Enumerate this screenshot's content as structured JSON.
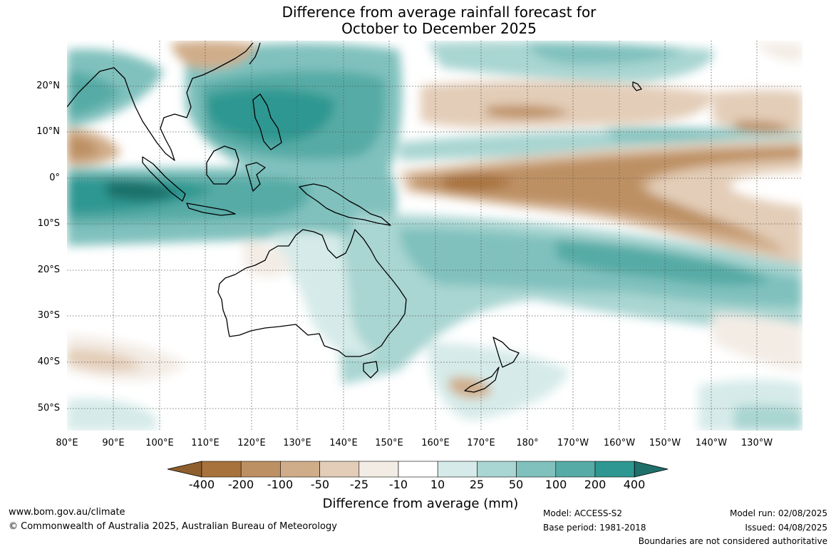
{
  "title": {
    "line1": "Difference from average rainfall forecast for",
    "line2": "October to December 2025"
  },
  "map": {
    "projection": "equirectangular",
    "lat_labels": [
      "20°N",
      "10°N",
      "0°",
      "10°S",
      "20°S",
      "30°S",
      "40°S",
      "50°S"
    ],
    "lon_labels": [
      "80°E",
      "90°E",
      "100°E",
      "110°E",
      "120°E",
      "130°E",
      "140°E",
      "150°E",
      "160°E",
      "170°E",
      "180°",
      "170°W",
      "160°W",
      "150°W",
      "140°W",
      "130°W"
    ],
    "gridlines": "dotted"
  },
  "legend": {
    "title": "Difference from average (mm)",
    "labels": [
      "-400",
      "-200",
      "-100",
      "-50",
      "-25",
      "-10",
      "10",
      "25",
      "50",
      "100",
      "200",
      "400"
    ],
    "colors": [
      "#a8723c",
      "#bd9064",
      "#d0ad8a",
      "#e3cdb8",
      "#f3ece5",
      "#ffffff",
      "#d6ebe9",
      "#a9d5d2",
      "#80c1bd",
      "#56aba6",
      "#2e9791",
      "#1f6f6b"
    ]
  },
  "footer": {
    "website": "www.bom.gov.au/climate",
    "copyright": "© Commonwealth of Australia 2025, Australian Bureau of Meteorology",
    "model": "Model: ACCESS-S2",
    "base_period": "Base period: 1981-2018",
    "model_run": "Model run: 02/08/2025",
    "issued": "Issued: 04/08/2025",
    "disclaimer": "Boundaries are not considered authoritative"
  }
}
